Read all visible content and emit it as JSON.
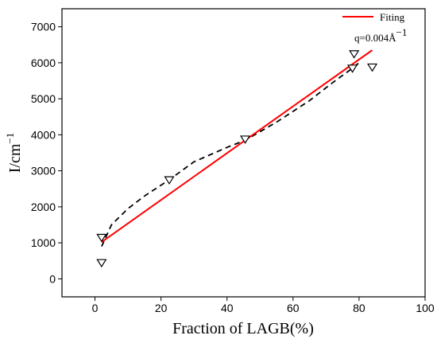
{
  "chart_data": {
    "type": "scatter",
    "xlabel": "Fraction of LAGB(%)",
    "ylabel": "I/cm",
    "ylabel_sup": "−1",
    "xlim": [
      -10,
      100
    ],
    "ylim": [
      -500,
      7500
    ],
    "xticks": [
      0,
      20,
      40,
      60,
      80,
      100
    ],
    "yticks": [
      0,
      1000,
      2000,
      3000,
      4000,
      5000,
      6000,
      7000
    ],
    "legend": {
      "placement": "top-right",
      "entries": [
        "Fiting"
      ]
    },
    "annotation": {
      "text": "q=0.004Å",
      "sup": "−1"
    },
    "series": [
      {
        "name": "",
        "style": "triangle-down-open",
        "color": "#000000",
        "points": [
          [
            2,
            450
          ],
          [
            2,
            1150
          ],
          [
            22.5,
            2750
          ],
          [
            45.5,
            3880
          ],
          [
            78,
            5850
          ],
          [
            78.5,
            6250
          ],
          [
            84,
            5880
          ]
        ]
      },
      {
        "name": "",
        "style": "dashed",
        "color": "#000000",
        "points": [
          [
            2,
            900
          ],
          [
            5,
            1500
          ],
          [
            10,
            1950
          ],
          [
            15,
            2300
          ],
          [
            22.5,
            2750
          ],
          [
            30,
            3250
          ],
          [
            40,
            3650
          ],
          [
            45.5,
            3850
          ],
          [
            55,
            4350
          ],
          [
            65,
            4950
          ],
          [
            72,
            5450
          ],
          [
            78,
            5850
          ],
          [
            80,
            6000
          ]
        ]
      },
      {
        "name": "Fiting",
        "style": "line",
        "color": "#ff0000",
        "points": [
          [
            2,
            1020
          ],
          [
            84,
            6350
          ]
        ]
      }
    ]
  }
}
